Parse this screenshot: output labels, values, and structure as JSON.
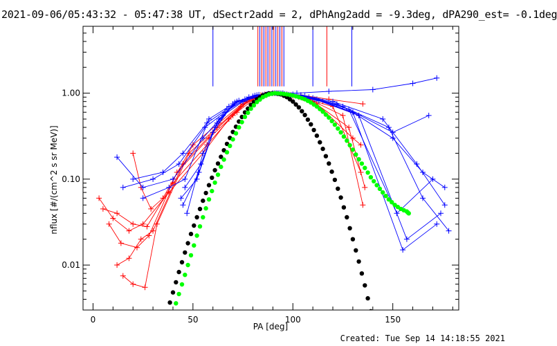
{
  "chart_data": {
    "type": "line",
    "title": "2021-09-06/05:43:32 - 05:47:38 UT, dSectr2add = 2, dPhAng2add = -9.3deg, dPA290_est= -0.1deg",
    "xlabel": "PA [deg]",
    "ylabel": "nflux [#/(cm^2 s sr MeV)]",
    "xlim": [
      -5,
      183
    ],
    "ylim": [
      0.003,
      6.0
    ],
    "yscale": "log",
    "xticks": [
      0,
      50,
      100,
      150
    ],
    "xtick_labels": [
      "0",
      "50",
      "100",
      "150"
    ],
    "yticks": [
      0.01,
      0.1,
      1.0
    ],
    "ytick_labels": [
      "0.01",
      "0.10",
      "1.00"
    ],
    "colors": {
      "red": "#ff0000",
      "blue": "#0000ff",
      "green": "#00ff00",
      "black": "#000000"
    },
    "series": [
      {
        "color": "red",
        "style": "lines+crosses",
        "x": [
          3,
          10,
          18,
          25,
          38,
          55,
          68,
          78,
          85,
          92,
          104,
          118,
          135
        ],
        "y": [
          0.06,
          0.035,
          0.025,
          0.03,
          0.07,
          0.2,
          0.5,
          0.85,
          0.95,
          1.0,
          0.95,
          0.85,
          0.75
        ]
      },
      {
        "color": "red",
        "style": "lines+crosses",
        "x": [
          5,
          12,
          20,
          27,
          40,
          57,
          70,
          80,
          88,
          93,
          103,
          115,
          133
        ],
        "y": [
          0.045,
          0.04,
          0.03,
          0.028,
          0.09,
          0.25,
          0.55,
          0.9,
          0.98,
          1.0,
          0.9,
          0.8,
          0.55
        ]
      },
      {
        "color": "red",
        "style": "lines+crosses",
        "x": [
          8,
          14,
          22,
          28,
          42,
          58,
          72,
          82,
          90,
          95,
          105,
          120,
          134
        ],
        "y": [
          0.03,
          0.018,
          0.016,
          0.022,
          0.12,
          0.3,
          0.6,
          0.9,
          1.0,
          0.99,
          0.88,
          0.7,
          0.12
        ]
      },
      {
        "color": "red",
        "style": "lines+crosses",
        "x": [
          12,
          18,
          24,
          30,
          45,
          60,
          74,
          84,
          91,
          97,
          108,
          125,
          135
        ],
        "y": [
          0.01,
          0.012,
          0.02,
          0.025,
          0.15,
          0.35,
          0.7,
          0.95,
          1.0,
          0.97,
          0.85,
          0.55,
          0.05
        ]
      },
      {
        "color": "red",
        "style": "lines+crosses",
        "x": [
          15,
          20,
          26,
          32,
          48,
          62,
          75,
          85,
          92,
          99,
          110,
          128,
          136
        ],
        "y": [
          0.0075,
          0.006,
          0.0055,
          0.03,
          0.2,
          0.4,
          0.75,
          0.96,
          1.0,
          0.95,
          0.8,
          0.4,
          0.08
        ]
      },
      {
        "color": "red",
        "style": "lines+crosses",
        "x": [
          20,
          24,
          29,
          35,
          50,
          63,
          76,
          86,
          93,
          100,
          112,
          130,
          134
        ],
        "y": [
          0.2,
          0.08,
          0.045,
          0.06,
          0.25,
          0.45,
          0.8,
          0.97,
          1.0,
          0.93,
          0.75,
          0.3,
          0.25
        ]
      },
      {
        "color": "blue",
        "style": "lines+crosses",
        "x": [
          12,
          25,
          40,
          55,
          65,
          75,
          85,
          92,
          100,
          112,
          130,
          150,
          165,
          176
        ],
        "y": [
          0.18,
          0.08,
          0.1,
          0.3,
          0.55,
          0.8,
          0.95,
          1.0,
          0.97,
          0.85,
          0.6,
          0.3,
          0.12,
          0.08
        ]
      },
      {
        "color": "blue",
        "style": "lines+crosses",
        "x": [
          15,
          30,
          43,
          56,
          66,
          76,
          86,
          93,
          102,
          118,
          140,
          160,
          172
        ],
        "y": [
          0.08,
          0.1,
          0.15,
          0.4,
          0.6,
          0.85,
          0.96,
          1.0,
          1.0,
          1.05,
          1.1,
          1.3,
          1.5
        ]
      },
      {
        "color": "blue",
        "style": "lines+crosses",
        "x": [
          20,
          35,
          45,
          57,
          67,
          77,
          87,
          94,
          104,
          120,
          145,
          162,
          176
        ],
        "y": [
          0.1,
          0.12,
          0.2,
          0.45,
          0.65,
          0.85,
          0.97,
          1.0,
          0.95,
          0.8,
          0.5,
          0.15,
          0.05
        ]
      },
      {
        "color": "blue",
        "style": "lines+crosses",
        "x": [
          25,
          38,
          46,
          58,
          68,
          78,
          88,
          95,
          106,
          122,
          148,
          165,
          178
        ],
        "y": [
          0.06,
          0.08,
          0.1,
          0.5,
          0.7,
          0.9,
          0.98,
          1.0,
          0.93,
          0.75,
          0.4,
          0.06,
          0.025
        ]
      },
      {
        "color": "blue",
        "style": "lines+crosses",
        "x": [
          44,
          52,
          60,
          70,
          80,
          90,
          96,
          108,
          125,
          150,
          168
        ],
        "y": [
          0.06,
          0.1,
          0.35,
          0.75,
          0.92,
          1.0,
          0.98,
          0.9,
          0.7,
          0.35,
          0.55
        ]
      },
      {
        "color": "blue",
        "style": "lines+crosses",
        "x": [
          45,
          53,
          61,
          71,
          81,
          91,
          97,
          110,
          128,
          152,
          170
        ],
        "y": [
          0.05,
          0.12,
          0.4,
          0.78,
          0.94,
          1.0,
          0.97,
          0.88,
          0.65,
          0.04,
          0.1
        ]
      },
      {
        "color": "blue",
        "style": "lines+crosses",
        "x": [
          46,
          54,
          62,
          72,
          82,
          92,
          98,
          111,
          130,
          155,
          172
        ],
        "y": [
          0.08,
          0.15,
          0.45,
          0.8,
          0.95,
          1.0,
          0.96,
          0.85,
          0.6,
          0.015,
          0.03
        ]
      },
      {
        "color": "blue",
        "style": "lines+crosses",
        "x": [
          47,
          55,
          63,
          73,
          83,
          93,
          99,
          113,
          133,
          157,
          174
        ],
        "y": [
          0.04,
          0.2,
          0.5,
          0.82,
          0.96,
          1.0,
          0.95,
          0.82,
          0.55,
          0.02,
          0.04
        ]
      }
    ],
    "model_curves": [
      {
        "color": "black",
        "points": [
          [
            37,
            0.0028
          ],
          [
            40,
            0.0048
          ],
          [
            43,
            0.0083
          ],
          [
            46,
            0.014
          ],
          [
            49,
            0.023
          ],
          [
            52,
            0.036
          ],
          [
            55,
            0.056
          ],
          [
            58,
            0.085
          ],
          [
            61,
            0.127
          ],
          [
            64,
            0.182
          ],
          [
            67,
            0.257
          ],
          [
            70,
            0.354
          ],
          [
            73,
            0.468
          ],
          [
            76,
            0.598
          ],
          [
            79,
            0.731
          ],
          [
            82,
            0.851
          ],
          [
            85,
            0.945
          ],
          [
            88,
            0.995
          ],
          [
            91,
            0.998
          ],
          [
            94,
            0.97
          ],
          [
            97,
            0.9
          ],
          [
            100,
            0.8
          ],
          [
            103,
            0.683
          ],
          [
            106,
            0.557
          ],
          [
            109,
            0.434
          ],
          [
            112,
            0.32
          ],
          [
            115,
            0.225
          ],
          [
            118,
            0.152
          ],
          [
            121,
            0.098
          ],
          [
            124,
            0.061
          ],
          [
            127,
            0.036
          ],
          [
            130,
            0.02
          ],
          [
            133,
            0.011
          ],
          [
            136,
            0.0058
          ],
          [
            139,
            0.0029
          ]
        ]
      },
      {
        "color": "green",
        "points": [
          [
            40,
            0.0028
          ],
          [
            43,
            0.0046
          ],
          [
            46,
            0.0077
          ],
          [
            49,
            0.013
          ],
          [
            52,
            0.022
          ],
          [
            55,
            0.036
          ],
          [
            58,
            0.058
          ],
          [
            61,
            0.091
          ],
          [
            64,
            0.139
          ],
          [
            67,
            0.205
          ],
          [
            70,
            0.29
          ],
          [
            73,
            0.4
          ],
          [
            76,
            0.53
          ],
          [
            79,
            0.66
          ],
          [
            82,
            0.79
          ],
          [
            85,
            0.9
          ],
          [
            88,
            0.97
          ],
          [
            91,
            1.0
          ],
          [
            94,
            0.99
          ],
          [
            97,
            0.97
          ],
          [
            100,
            0.94
          ],
          [
            103,
            0.9
          ],
          [
            106,
            0.85
          ],
          [
            109,
            0.78
          ],
          [
            112,
            0.7
          ],
          [
            115,
            0.61
          ],
          [
            118,
            0.52
          ],
          [
            121,
            0.43
          ],
          [
            124,
            0.35
          ],
          [
            127,
            0.28
          ],
          [
            130,
            0.22
          ],
          [
            133,
            0.17
          ],
          [
            136,
            0.135
          ],
          [
            139,
            0.105
          ],
          [
            142,
            0.085
          ],
          [
            145,
            0.07
          ],
          [
            148,
            0.058
          ],
          [
            151,
            0.05
          ],
          [
            154,
            0.045
          ],
          [
            157,
            0.042
          ],
          [
            158,
            0.04
          ]
        ]
      }
    ],
    "vertical_markers": [
      {
        "x": 60,
        "color": "blue",
        "ymin": 1.2
      },
      {
        "x": 82.5,
        "color": "red",
        "ymin": 1.2
      },
      {
        "x": 83.5,
        "color": "blue",
        "ymin": 1.2
      },
      {
        "x": 84.5,
        "color": "red",
        "ymin": 1.2
      },
      {
        "x": 85.5,
        "color": "blue",
        "ymin": 1.2
      },
      {
        "x": 86.5,
        "color": "red",
        "ymin": 1.2
      },
      {
        "x": 87.5,
        "color": "blue",
        "ymin": 1.2
      },
      {
        "x": 88.5,
        "color": "red",
        "ymin": 1.2
      },
      {
        "x": 89.5,
        "color": "blue",
        "ymin": 1.2
      },
      {
        "x": 90.5,
        "color": "red",
        "ymin": 1.2
      },
      {
        "x": 91.5,
        "color": "blue",
        "ymin": 1.2
      },
      {
        "x": 92.5,
        "color": "red",
        "ymin": 1.2
      },
      {
        "x": 93.5,
        "color": "blue",
        "ymin": 1.2
      },
      {
        "x": 94.5,
        "color": "red",
        "ymin": 1.2
      },
      {
        "x": 95.5,
        "color": "blue",
        "ymin": 1.2
      },
      {
        "x": 110,
        "color": "blue",
        "ymin": 1.2
      },
      {
        "x": 117,
        "color": "red",
        "ymin": 1.2
      },
      {
        "x": 129.5,
        "color": "blue",
        "ymin": 1.2
      }
    ]
  },
  "footer": {
    "created": "Created: Tue Sep 14 14:18:55 2021"
  }
}
